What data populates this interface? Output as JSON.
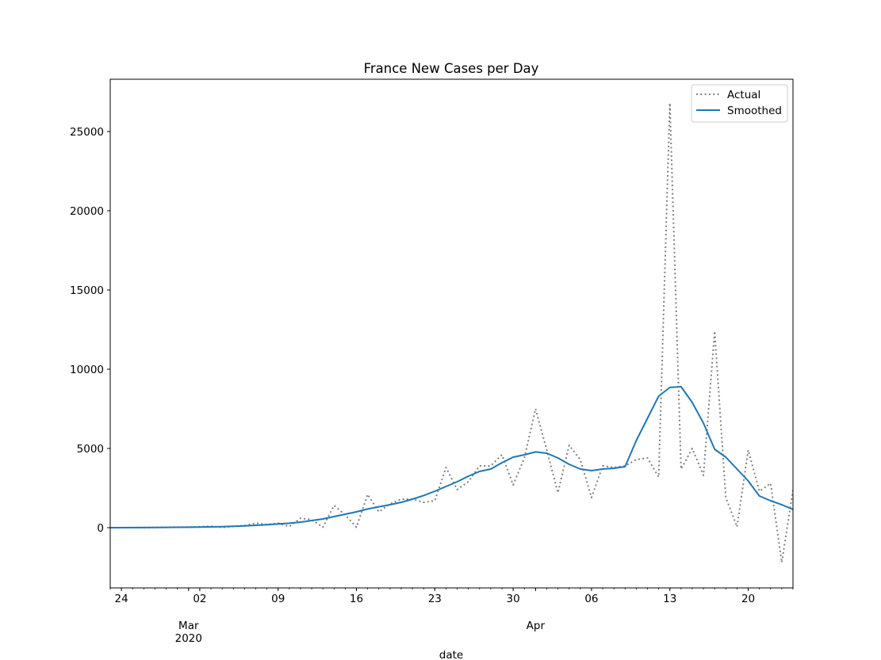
{
  "chart_data": {
    "type": "line",
    "title": "France New Cases per Day",
    "xlabel": "date",
    "ylabel": "",
    "x_start": "2020-02-23",
    "x_end": "2020-04-24",
    "ylim": [
      -3800,
      28300
    ],
    "yticks": [
      0,
      5000,
      10000,
      15000,
      20000,
      25000
    ],
    "xticks_major": [
      {
        "date": "2020-02-24",
        "label": "24"
      },
      {
        "date": "2020-03-02",
        "label": "02"
      },
      {
        "date": "2020-03-09",
        "label": "09"
      },
      {
        "date": "2020-03-16",
        "label": "16"
      },
      {
        "date": "2020-03-23",
        "label": "23"
      },
      {
        "date": "2020-03-30",
        "label": "30"
      },
      {
        "date": "2020-04-06",
        "label": "06"
      },
      {
        "date": "2020-04-13",
        "label": "13"
      },
      {
        "date": "2020-04-20",
        "label": "20"
      }
    ],
    "xticks_month": [
      {
        "date": "2020-03-01",
        "label": "Mar",
        "sublabel": "2020"
      },
      {
        "date": "2020-04-01",
        "label": "Apr",
        "sublabel": ""
      }
    ],
    "legend_position": "top-right",
    "grid": false,
    "series": [
      {
        "name": "Actual",
        "color": "#808080",
        "style": "dotted",
        "points": [
          [
            "2020-02-23",
            0
          ],
          [
            "2020-02-24",
            0
          ],
          [
            "2020-02-25",
            2
          ],
          [
            "2020-02-26",
            2
          ],
          [
            "2020-02-27",
            20
          ],
          [
            "2020-02-28",
            20
          ],
          [
            "2020-02-29",
            40
          ],
          [
            "2020-03-01",
            30
          ],
          [
            "2020-03-02",
            60
          ],
          [
            "2020-03-03",
            90
          ],
          [
            "2020-03-04",
            20
          ],
          [
            "2020-03-05",
            80
          ],
          [
            "2020-03-06",
            130
          ],
          [
            "2020-03-07",
            290
          ],
          [
            "2020-03-08",
            200
          ],
          [
            "2020-03-09",
            290
          ],
          [
            "2020-03-10",
            70
          ],
          [
            "2020-03-11",
            600
          ],
          [
            "2020-03-12",
            500
          ],
          [
            "2020-03-13",
            30
          ],
          [
            "2020-03-14",
            1400
          ],
          [
            "2020-03-15",
            800
          ],
          [
            "2020-03-16",
            30
          ],
          [
            "2020-03-17",
            2100
          ],
          [
            "2020-03-18",
            1000
          ],
          [
            "2020-03-19",
            1500
          ],
          [
            "2020-03-20",
            1800
          ],
          [
            "2020-03-21",
            1800
          ],
          [
            "2020-03-22",
            1600
          ],
          [
            "2020-03-23",
            1700
          ],
          [
            "2020-03-24",
            3800
          ],
          [
            "2020-03-25",
            2400
          ],
          [
            "2020-03-26",
            2900
          ],
          [
            "2020-03-27",
            3900
          ],
          [
            "2020-03-28",
            3900
          ],
          [
            "2020-03-29",
            4600
          ],
          [
            "2020-03-30",
            2700
          ],
          [
            "2020-03-31",
            4400
          ],
          [
            "2020-04-01",
            7500
          ],
          [
            "2020-04-02",
            4900
          ],
          [
            "2020-04-03",
            2200
          ],
          [
            "2020-04-04",
            5200
          ],
          [
            "2020-04-05",
            4300
          ],
          [
            "2020-04-06",
            1900
          ],
          [
            "2020-04-07",
            3900
          ],
          [
            "2020-04-08",
            3800
          ],
          [
            "2020-04-09",
            3900
          ],
          [
            "2020-04-10",
            4300
          ],
          [
            "2020-04-11",
            4400
          ],
          [
            "2020-04-12",
            3200
          ],
          [
            "2020-04-13",
            26800
          ],
          [
            "2020-04-14",
            3700
          ],
          [
            "2020-04-15",
            5000
          ],
          [
            "2020-04-16",
            3300
          ],
          [
            "2020-04-17",
            12400
          ],
          [
            "2020-04-18",
            1900
          ],
          [
            "2020-04-19",
            50
          ],
          [
            "2020-04-20",
            4900
          ],
          [
            "2020-04-21",
            2300
          ],
          [
            "2020-04-22",
            2800
          ],
          [
            "2020-04-23",
            -2200
          ],
          [
            "2020-04-24",
            2400
          ],
          [
            "2020-04-25",
            1600
          ]
        ]
      },
      {
        "name": "Smoothed",
        "color": "#1f77b4",
        "style": "solid",
        "points": [
          [
            "2020-02-23",
            0
          ],
          [
            "2020-02-25",
            5
          ],
          [
            "2020-02-27",
            15
          ],
          [
            "2020-02-29",
            25
          ],
          [
            "2020-03-02",
            40
          ],
          [
            "2020-03-04",
            60
          ],
          [
            "2020-03-06",
            110
          ],
          [
            "2020-03-08",
            190
          ],
          [
            "2020-03-10",
            280
          ],
          [
            "2020-03-11",
            350
          ],
          [
            "2020-03-12",
            450
          ],
          [
            "2020-03-13",
            550
          ],
          [
            "2020-03-14",
            700
          ],
          [
            "2020-03-15",
            850
          ],
          [
            "2020-03-16",
            1000
          ],
          [
            "2020-03-17",
            1180
          ],
          [
            "2020-03-18",
            1320
          ],
          [
            "2020-03-19",
            1450
          ],
          [
            "2020-03-20",
            1600
          ],
          [
            "2020-03-21",
            1800
          ],
          [
            "2020-03-22",
            2030
          ],
          [
            "2020-03-23",
            2300
          ],
          [
            "2020-03-24",
            2600
          ],
          [
            "2020-03-25",
            2900
          ],
          [
            "2020-03-26",
            3250
          ],
          [
            "2020-03-27",
            3550
          ],
          [
            "2020-03-28",
            3700
          ],
          [
            "2020-03-29",
            4100
          ],
          [
            "2020-03-30",
            4450
          ],
          [
            "2020-03-31",
            4600
          ],
          [
            "2020-04-01",
            4780
          ],
          [
            "2020-04-02",
            4700
          ],
          [
            "2020-04-03",
            4400
          ],
          [
            "2020-04-04",
            4000
          ],
          [
            "2020-04-05",
            3700
          ],
          [
            "2020-04-06",
            3600
          ],
          [
            "2020-04-07",
            3700
          ],
          [
            "2020-04-08",
            3750
          ],
          [
            "2020-04-09",
            3850
          ],
          [
            "2020-04-10",
            5500
          ],
          [
            "2020-04-11",
            6900
          ],
          [
            "2020-04-12",
            8300
          ],
          [
            "2020-04-13",
            8850
          ],
          [
            "2020-04-14",
            8900
          ],
          [
            "2020-04-15",
            7900
          ],
          [
            "2020-04-16",
            6600
          ],
          [
            "2020-04-17",
            4950
          ],
          [
            "2020-04-18",
            4450
          ],
          [
            "2020-04-19",
            3700
          ],
          [
            "2020-04-20",
            2950
          ],
          [
            "2020-04-21",
            2000
          ],
          [
            "2020-04-22",
            1700
          ],
          [
            "2020-04-23",
            1450
          ],
          [
            "2020-04-24",
            1150
          ],
          [
            "2020-04-25",
            1150
          ]
        ]
      }
    ]
  }
}
